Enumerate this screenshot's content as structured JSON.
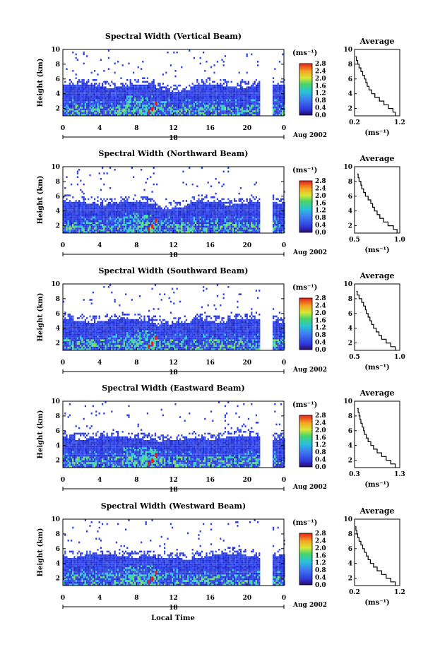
{
  "common": {
    "x_ticks": [
      "0",
      "4",
      "8",
      "12",
      "16",
      "20",
      "0"
    ],
    "y_ticks": [
      "2",
      "4",
      "6",
      "8",
      "10"
    ],
    "cb_ticks": [
      "0.0",
      "0.4",
      "0.8",
      "1.2",
      "1.6",
      "2.0",
      "2.4",
      "2.8"
    ],
    "ylabel": "Height (km)",
    "units": "(ms⁻¹)",
    "date_label": "Aug 2002",
    "day_label": "18",
    "xlabel": "Local Time",
    "avg_title": "Average",
    "avg_xlabel": "(ms⁻¹)"
  },
  "chart_data": [
    {
      "type": "heatmap",
      "title": "Spectral Width (Vertical Beam)",
      "xlim": [
        0,
        24
      ],
      "ylim": [
        1,
        10
      ],
      "clim": [
        0,
        2.8
      ],
      "avg_ticks": [
        "0.2",
        "1.2"
      ],
      "avg_xlim": [
        0.2,
        1.2
      ],
      "avg_profile": {
        "height": [
          1,
          1.5,
          2,
          2.5,
          3,
          3.5,
          4,
          4.5,
          5,
          5.5,
          6,
          6.5,
          7,
          7.5,
          8,
          8.5,
          9
        ],
        "value": [
          1.1,
          1.05,
          0.95,
          0.85,
          0.75,
          0.65,
          0.58,
          0.52,
          0.48,
          0.45,
          0.42,
          0.38,
          0.34,
          0.3,
          0.27,
          0.24,
          0.22
        ]
      }
    },
    {
      "type": "heatmap",
      "title": "Spectral Width (Northward Beam)",
      "xlim": [
        0,
        24
      ],
      "ylim": [
        1,
        10
      ],
      "clim": [
        0,
        2.8
      ],
      "avg_ticks": [
        "0.5",
        "1.0"
      ],
      "avg_xlim": [
        0.5,
        1.0
      ],
      "avg_profile": {
        "height": [
          1,
          1.5,
          2,
          2.5,
          3,
          3.5,
          4,
          4.5,
          5,
          5.5,
          6,
          6.5,
          7,
          7.5,
          8,
          8.5,
          9
        ],
        "value": [
          0.97,
          0.93,
          0.87,
          0.82,
          0.78,
          0.75,
          0.72,
          0.7,
          0.68,
          0.65,
          0.62,
          0.6,
          0.58,
          0.57,
          0.55,
          0.54,
          0.53
        ]
      }
    },
    {
      "type": "heatmap",
      "title": "Spectral Width (Southward Beam)",
      "xlim": [
        0,
        24
      ],
      "ylim": [
        1,
        10
      ],
      "clim": [
        0,
        2.8
      ],
      "avg_ticks": [
        "0.5",
        "1.0"
      ],
      "avg_xlim": [
        0.5,
        1.0
      ],
      "avg_profile": {
        "height": [
          1,
          1.5,
          2,
          2.5,
          3,
          3.5,
          4,
          4.5,
          5,
          5.5,
          6,
          6.5,
          7,
          7.5,
          8,
          8.5,
          9
        ],
        "value": [
          0.95,
          0.9,
          0.85,
          0.8,
          0.77,
          0.74,
          0.71,
          0.69,
          0.67,
          0.65,
          0.63,
          0.62,
          0.6,
          0.58,
          0.55,
          0.53,
          0.52
        ]
      }
    },
    {
      "type": "heatmap",
      "title": "Spectral Width (Eastward Beam)",
      "xlim": [
        0,
        24
      ],
      "ylim": [
        1,
        10
      ],
      "clim": [
        0,
        2.8
      ],
      "avg_ticks": [
        "0.3",
        "1.3"
      ],
      "avg_xlim": [
        0.3,
        1.3
      ],
      "avg_profile": {
        "height": [
          1,
          1.5,
          2,
          2.5,
          3,
          3.5,
          4,
          4.5,
          5,
          5.5,
          6,
          6.5,
          7,
          7.5,
          8,
          8.5,
          9
        ],
        "value": [
          1.2,
          1.1,
          1.0,
          0.9,
          0.8,
          0.72,
          0.66,
          0.6,
          0.56,
          0.52,
          0.5,
          0.47,
          0.44,
          0.42,
          0.4,
          0.38,
          0.36
        ]
      }
    },
    {
      "type": "heatmap",
      "title": "Spectral Width (Westward Beam)",
      "xlim": [
        0,
        24
      ],
      "ylim": [
        1,
        10
      ],
      "clim": [
        0,
        2.8
      ],
      "avg_ticks": [
        "0.2",
        "1.2"
      ],
      "avg_xlim": [
        0.2,
        1.2
      ],
      "avg_profile": {
        "height": [
          1,
          1.5,
          2,
          2.5,
          3,
          3.5,
          4,
          4.5,
          5,
          5.5,
          6,
          6.5,
          7,
          7.5,
          8,
          8.5,
          9
        ],
        "value": [
          1.1,
          1.0,
          0.9,
          0.8,
          0.7,
          0.62,
          0.55,
          0.5,
          0.46,
          0.42,
          0.38,
          0.34,
          0.3,
          0.27,
          0.25,
          0.23,
          0.22
        ]
      }
    }
  ]
}
